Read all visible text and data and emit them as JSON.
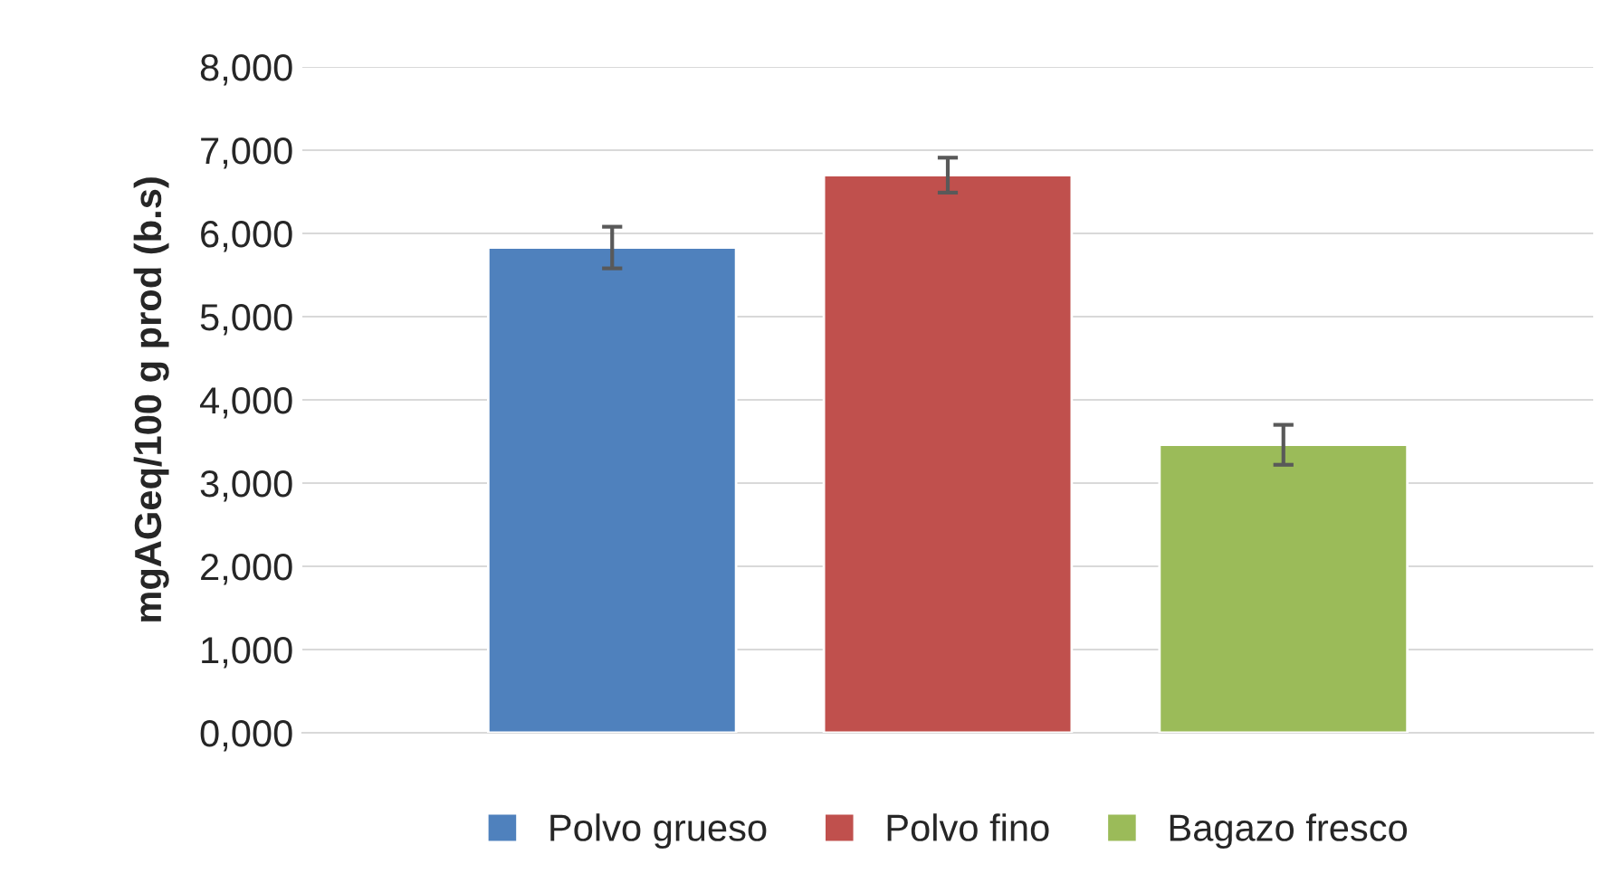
{
  "chart_data": {
    "type": "bar",
    "ylabel": "mgAGeq/100 g prod (b.s)",
    "categories": [
      null
    ],
    "series": [
      {
        "name": "Polvo grueso",
        "color": "#4f81bd",
        "values": [
          5830
        ],
        "errors": [
          250
        ]
      },
      {
        "name": "Polvo fino",
        "color": "#c0504d",
        "values": [
          6700
        ],
        "errors": [
          210
        ]
      },
      {
        "name": "Bagazo fresco",
        "color": "#9bbb59",
        "values": [
          3460
        ],
        "errors": [
          240
        ]
      }
    ],
    "ylim": [
      0,
      8000
    ],
    "yticks": [
      {
        "value": 0,
        "label": "0,000"
      },
      {
        "value": 1000,
        "label": "1,000"
      },
      {
        "value": 2000,
        "label": "2,000"
      },
      {
        "value": 3000,
        "label": "3,000"
      },
      {
        "value": 4000,
        "label": "4,000"
      },
      {
        "value": 5000,
        "label": "5,000"
      },
      {
        "value": 6000,
        "label": "6,000"
      },
      {
        "value": 7000,
        "label": "7,000"
      },
      {
        "value": 8000,
        "label": "8,000"
      }
    ],
    "grid": "y",
    "legend": "bottom"
  }
}
